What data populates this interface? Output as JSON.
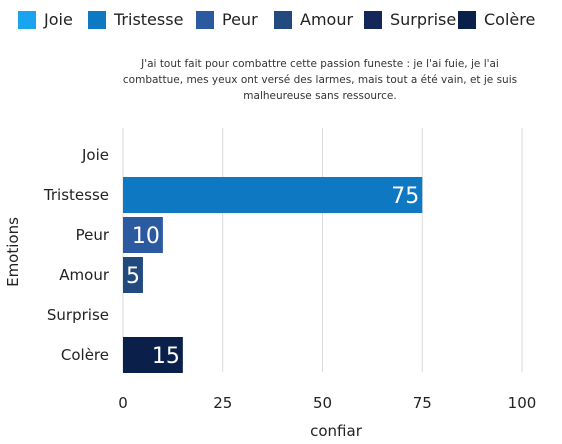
{
  "legend": [
    {
      "label": "Joie",
      "color": "#1aa3ee"
    },
    {
      "label": "Tristesse",
      "color": "#0f78c2"
    },
    {
      "label": "Peur",
      "color": "#2b5aa1"
    },
    {
      "label": "Amour",
      "color": "#234a7e"
    },
    {
      "label": "Surprise",
      "color": "#13275a"
    },
    {
      "label": "Colère",
      "color": "#0a1f4a"
    }
  ],
  "quote": "J'ai tout fait pour combattre cette passion funeste : je l'ai fuie, je l'ai combattue, mes yeux ont versé des larmes, mais tout a été vain, et je suis malheureuse sans ressource.",
  "chart_data": {
    "type": "bar",
    "orientation": "horizontal",
    "categories": [
      "Joie",
      "Tristesse",
      "Peur",
      "Amour",
      "Surprise",
      "Colère"
    ],
    "values": [
      0,
      75,
      10,
      5,
      0,
      15
    ],
    "data_labels": [
      "",
      "75",
      "10",
      "5",
      "",
      "15"
    ],
    "colors": [
      "#1aa3ee",
      "#0f78c2",
      "#2b5aa1",
      "#234a7e",
      "#13275a",
      "#0a1f4a"
    ],
    "xlabel": "confiar",
    "ylabel": "Emotions",
    "xlim": [
      0,
      100
    ],
    "xticks": [
      0,
      25,
      50,
      75,
      100
    ],
    "grid": "vertical",
    "legend_position": "top"
  }
}
